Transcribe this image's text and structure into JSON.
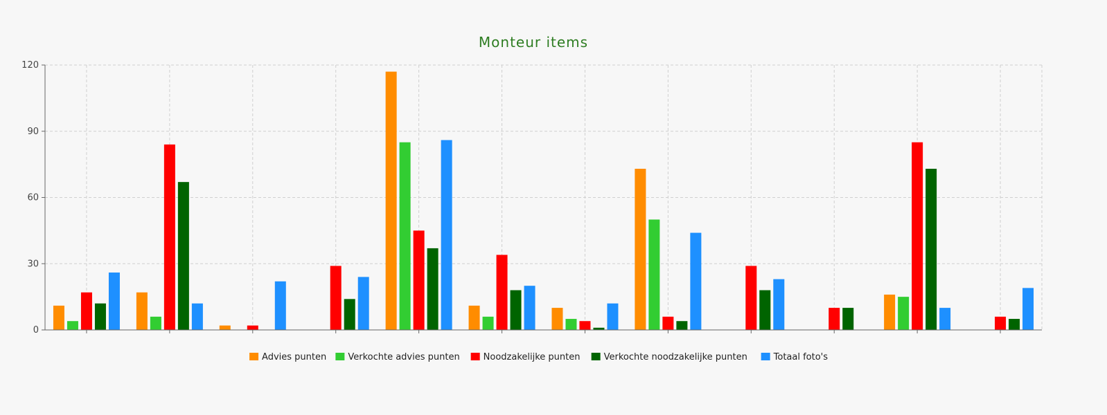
{
  "chart_data": {
    "type": "bar",
    "title": "Monteur items",
    "xlabel": "",
    "ylabel": "",
    "ylim": [
      0,
      120
    ],
    "yticks": [
      0,
      30,
      60,
      90,
      120
    ],
    "grid": true,
    "legend_position": "bottom",
    "categories": [
      "",
      "",
      "",
      "",
      "",
      "",
      "",
      "",
      "",
      "",
      "",
      ""
    ],
    "series": [
      {
        "name": "Advies punten",
        "color": "#ff8c00",
        "values": [
          11,
          17,
          2,
          0,
          117,
          11,
          10,
          73,
          0,
          0,
          16,
          0
        ]
      },
      {
        "name": "Verkochte advies punten",
        "color": "#32cd32",
        "values": [
          4,
          6,
          0,
          0,
          85,
          6,
          5,
          50,
          0,
          0,
          15,
          0
        ]
      },
      {
        "name": "Noodzakelijke punten",
        "color": "#ff0000",
        "values": [
          17,
          84,
          2,
          29,
          45,
          34,
          4,
          6,
          29,
          10,
          85,
          6
        ]
      },
      {
        "name": "Verkochte noodzakelijke punten",
        "color": "#006400",
        "values": [
          12,
          67,
          0,
          14,
          37,
          18,
          1,
          4,
          18,
          10,
          73,
          5
        ]
      },
      {
        "name": "Totaal foto's",
        "color": "#1e90ff",
        "values": [
          26,
          12,
          22,
          24,
          86,
          20,
          12,
          44,
          23,
          0,
          10,
          19
        ]
      }
    ]
  }
}
